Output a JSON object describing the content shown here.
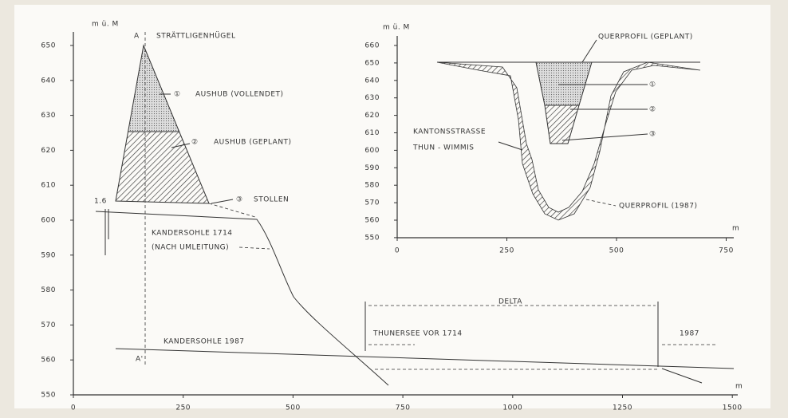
{
  "main": {
    "y_unit": "m ü. M",
    "y_ticks": [
      "650",
      "640",
      "630",
      "620",
      "610",
      "600",
      "590",
      "580",
      "570",
      "560",
      "550"
    ],
    "x_ticks": [
      "0",
      "250",
      "500",
      "750",
      "1000",
      "1250",
      "1500"
    ],
    "x_unit": "m",
    "section_start": "A",
    "section_end": "A'",
    "hill": "STRÄTTLIGENHÜGEL",
    "marker_1": "①",
    "excavation_done": "AUSHUB (VOLLENDET)",
    "marker_2": "②",
    "excavation_planned": "AUSHUB (GEPLANT)",
    "marker_3": "③",
    "tunnel": "STOLLEN",
    "gauge": "1.6",
    "bed_1714": "KANDERSOHLE 1714",
    "bed_1714_note": "(NACH UMLEITUNG)",
    "bed_1987": "KANDERSOHLE 1987",
    "delta": "DELTA",
    "lake_1714": "THUNERSEE VOR 1714",
    "lake_1987": "1987"
  },
  "inset": {
    "y_unit": "m ü. M",
    "y_ticks": [
      "660",
      "650",
      "640",
      "630",
      "620",
      "610",
      "600",
      "590",
      "580",
      "570",
      "560",
      "550"
    ],
    "x_ticks": [
      "0",
      "250",
      "500",
      "750"
    ],
    "x_unit": "m",
    "profile_planned": "QUERPROFIL (GEPLANT)",
    "marker_1": "①",
    "marker_2": "②",
    "marker_3": "③",
    "road": "KANTONSSTRASSE",
    "road_route": "THUN - WIMMIS",
    "profile_1987": "QUERPROFIL (1987)"
  }
}
